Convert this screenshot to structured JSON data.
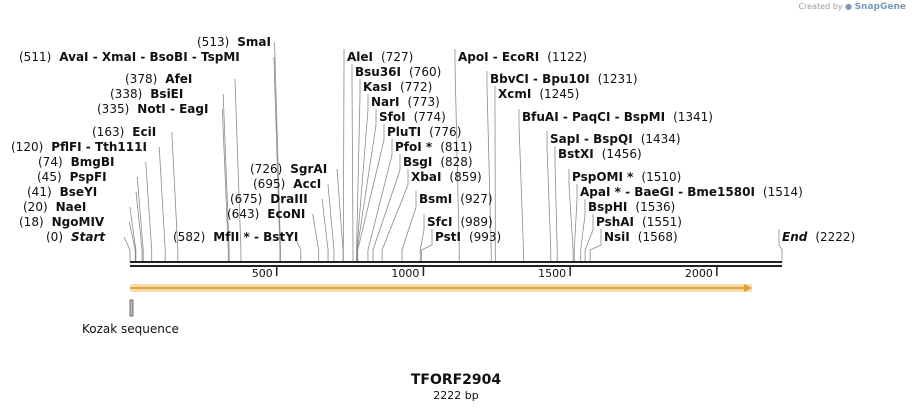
{
  "watermark": {
    "prefix": "Created by",
    "brand": "SnapGene"
  },
  "title": "TFORF2904",
  "length_text": "2222 bp",
  "sequence_length": 2222,
  "axis_ticks": [
    500,
    1000,
    1500,
    2000
  ],
  "orf": {
    "start": 1,
    "end": 2222,
    "color": "#e8a33c",
    "glow": "#f6dca8"
  },
  "feature": {
    "name": "Kozak sequence",
    "start": 1,
    "end": 8
  },
  "sites": [
    {
      "name": "Start",
      "pos": 0,
      "italic": true
    },
    {
      "name": "NgoMIV",
      "pos": 18
    },
    {
      "name": "NaeI",
      "pos": 20
    },
    {
      "name": "BseYI",
      "pos": 41
    },
    {
      "name": "PspFI",
      "pos": 45
    },
    {
      "name": "BmgBI",
      "pos": 74
    },
    {
      "name": "PflFI - Tth111I",
      "pos": 120
    },
    {
      "name": "EciI",
      "pos": 163
    },
    {
      "name": "NotI - EagI",
      "pos": 335
    },
    {
      "name": "BsiEI",
      "pos": 338
    },
    {
      "name": "AfeI",
      "pos": 378
    },
    {
      "name": "AvaI - XmaI - BsoBI - TspMI",
      "pos": 511
    },
    {
      "name": "SmaI",
      "pos": 513
    },
    {
      "name": "MfII * - BstYI",
      "pos": 582
    },
    {
      "name": "EcoNI",
      "pos": 643
    },
    {
      "name": "DraIII",
      "pos": 675
    },
    {
      "name": "AccI",
      "pos": 695
    },
    {
      "name": "SgrAI",
      "pos": 726
    },
    {
      "name": "AleI",
      "pos": 727
    },
    {
      "name": "Bsu36I",
      "pos": 760
    },
    {
      "name": "KasI",
      "pos": 772
    },
    {
      "name": "NarI",
      "pos": 773
    },
    {
      "name": "SfoI",
      "pos": 774
    },
    {
      "name": "PluTI",
      "pos": 776
    },
    {
      "name": "PfoI *",
      "pos": 811
    },
    {
      "name": "BsgI",
      "pos": 828
    },
    {
      "name": "XbaI",
      "pos": 859
    },
    {
      "name": "BsmI",
      "pos": 927
    },
    {
      "name": "SfcI",
      "pos": 989
    },
    {
      "name": "PstI",
      "pos": 993
    },
    {
      "name": "ApoI - EcoRI",
      "pos": 1122
    },
    {
      "name": "BbvCI - Bpu10I",
      "pos": 1231
    },
    {
      "name": "XcmI",
      "pos": 1245
    },
    {
      "name": "BfuAI - PaqCI - BspMI",
      "pos": 1341
    },
    {
      "name": "SapI - BspQI",
      "pos": 1434
    },
    {
      "name": "BstXI",
      "pos": 1456
    },
    {
      "name": "PspOMI *",
      "pos": 1510
    },
    {
      "name": "ApaI * - BaeGI - Bme1580I",
      "pos": 1514
    },
    {
      "name": "BspHI",
      "pos": 1536
    },
    {
      "name": "PshAI",
      "pos": 1551
    },
    {
      "name": "NsiI",
      "pos": 1568
    },
    {
      "name": "End",
      "pos": 2222,
      "italic": true
    }
  ]
}
